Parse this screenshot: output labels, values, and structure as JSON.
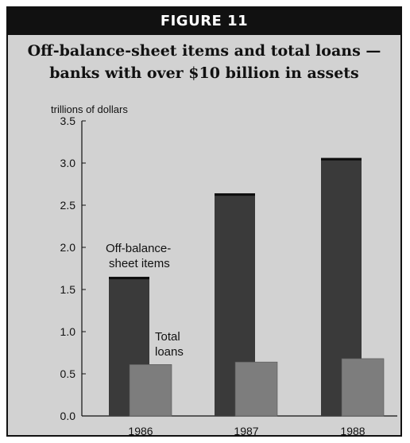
{
  "figure_label": "FIGURE 11",
  "title_lines": [
    "Off-balance-sheet items and total loans —",
    "banks with over $10 billion in assets"
  ],
  "chart_data": {
    "type": "bar",
    "title": "Off-balance-sheet items and total loans — banks with over $10 billion in assets",
    "ylabel": "trillions of dollars",
    "ylim": [
      0,
      3.5
    ],
    "yticks": [
      "0.0",
      "0.5",
      "1.0",
      "1.5",
      "2.0",
      "2.5",
      "3.0",
      "3.5"
    ],
    "categories": [
      "1986",
      "1987",
      "1988"
    ],
    "series": [
      {
        "name": "Off-balance-sheet items",
        "values": [
          1.65,
          2.64,
          3.06
        ],
        "color": "#3a3a3a"
      },
      {
        "name": "Total loans",
        "values": [
          0.61,
          0.64,
          0.68
        ],
        "color": "#7d7d7d"
      }
    ],
    "annotations": [
      {
        "series": "Off-balance-sheet items",
        "lines": [
          "Off-balance-",
          "sheet items"
        ]
      },
      {
        "series": "Total loans",
        "lines": [
          "Total",
          "loans"
        ]
      }
    ],
    "legend": "none",
    "grid": false
  }
}
